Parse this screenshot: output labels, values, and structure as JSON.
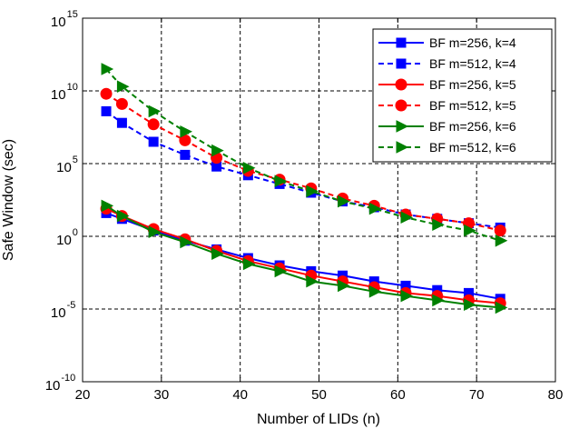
{
  "chart_data": {
    "type": "line",
    "title": "",
    "xlabel": "Number of LIDs (n)",
    "ylabel": "Safe Window (sec)",
    "xlim": [
      20,
      80
    ],
    "ylim_log10": [
      -10,
      15
    ],
    "yscale": "log",
    "grid": true,
    "grid_style": "dashed",
    "legend_position": "top-right",
    "x_ticks": [
      "20",
      "30",
      "40",
      "50",
      "60",
      "70",
      "80"
    ],
    "y_ticks": [
      {
        "base": "10",
        "exp": "15"
      },
      {
        "base": "10",
        "exp": "10"
      },
      {
        "base": "10",
        "exp": "5"
      },
      {
        "base": "10",
        "exp": "0"
      },
      {
        "base": "10",
        "exp": "-5"
      },
      {
        "base": "10",
        "exp": "-10"
      }
    ],
    "x": [
      23,
      25,
      29,
      33,
      37,
      41,
      45,
      49,
      53,
      57,
      61,
      65,
      69,
      73
    ],
    "series": [
      {
        "name": "BF m=256, k=4",
        "color": "#0000ff",
        "dash": "solid",
        "marker": "square",
        "log10_values": [
          1.6,
          1.2,
          0.4,
          -0.3,
          -0.9,
          -1.5,
          -2.0,
          -2.4,
          -2.7,
          -3.1,
          -3.4,
          -3.7,
          -3.9,
          -4.3
        ]
      },
      {
        "name": "BF m=512, k=4",
        "color": "#0000ff",
        "dash": "dashed",
        "marker": "square",
        "log10_values": [
          8.6,
          7.8,
          6.5,
          5.6,
          4.8,
          4.2,
          3.6,
          3.0,
          2.4,
          2.0,
          1.5,
          1.2,
          0.9,
          0.6
        ]
      },
      {
        "name": "BF m=256, k=5",
        "color": "#ff0000",
        "dash": "solid",
        "marker": "circle",
        "log10_values": [
          1.9,
          1.4,
          0.5,
          -0.2,
          -1.0,
          -1.7,
          -2.2,
          -2.7,
          -3.1,
          -3.5,
          -3.9,
          -4.1,
          -4.4,
          -4.6
        ]
      },
      {
        "name": "BF m=512, k=5",
        "color": "#ff0000",
        "dash": "dashed",
        "marker": "circle",
        "log10_values": [
          9.8,
          9.1,
          7.7,
          6.6,
          5.4,
          4.5,
          3.9,
          3.3,
          2.6,
          2.1,
          1.5,
          1.2,
          0.9,
          0.4
        ]
      },
      {
        "name": "BF m=256, k=6",
        "color": "#008000",
        "dash": "solid",
        "marker": "triangle-right",
        "log10_values": [
          2.1,
          1.4,
          0.3,
          -0.4,
          -1.2,
          -1.9,
          -2.4,
          -3.1,
          -3.4,
          -3.8,
          -4.1,
          -4.4,
          -4.7,
          -4.9
        ]
      },
      {
        "name": "BF m=512, k=6",
        "color": "#008000",
        "dash": "dashed",
        "marker": "triangle-right",
        "log10_values": [
          11.5,
          10.3,
          8.6,
          7.2,
          5.9,
          4.7,
          3.8,
          3.1,
          2.4,
          1.9,
          1.3,
          0.8,
          0.4,
          -0.3
        ]
      }
    ]
  }
}
